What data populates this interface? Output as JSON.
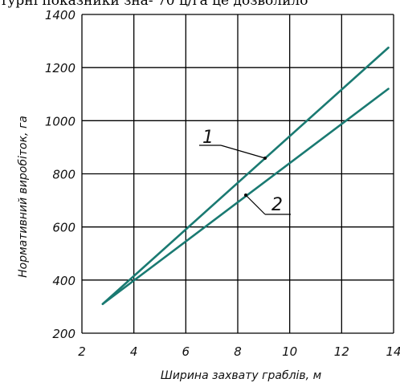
{
  "header_text": "турні показники зна- 70 ц/га це дозволило",
  "chart_data": {
    "type": "line",
    "title": "",
    "xlabel": "Ширина захвату граблів, м",
    "ylabel": "Нормативний виробіток, га",
    "xlim": [
      2,
      14
    ],
    "ylim": [
      200,
      1400
    ],
    "xticks": [
      "2",
      "4",
      "6",
      "8",
      "10",
      "12",
      "14"
    ],
    "yticks": [
      "200",
      "400",
      "600",
      "800",
      "1000",
      "1200",
      "1400"
    ],
    "grid": true,
    "line_color": "#1a7a72",
    "series": [
      {
        "name": "1",
        "x": [
          2.8,
          13.8
        ],
        "y": [
          310,
          1275
        ]
      },
      {
        "name": "2",
        "x": [
          2.8,
          13.8
        ],
        "y": [
          310,
          1120
        ]
      }
    ]
  }
}
